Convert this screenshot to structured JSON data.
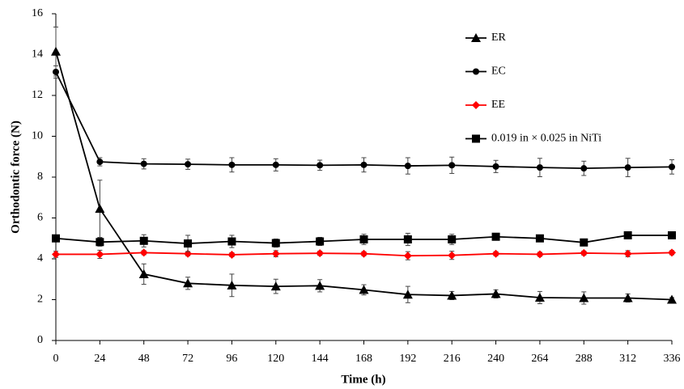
{
  "chart_data": {
    "type": "line",
    "x_label": "Time (h)",
    "y_label": "Orthodontic force (N)",
    "x": [
      0,
      24,
      48,
      72,
      96,
      120,
      144,
      168,
      192,
      216,
      240,
      264,
      288,
      312,
      336
    ],
    "xlim": [
      0,
      336
    ],
    "xticks": [
      0,
      24,
      48,
      72,
      96,
      120,
      144,
      168,
      192,
      216,
      240,
      264,
      288,
      312,
      336
    ],
    "ylim": [
      0,
      16
    ],
    "yticks": [
      0,
      2,
      4,
      6,
      8,
      10,
      12,
      14,
      16
    ],
    "grid": false,
    "legend": "upper right",
    "series": [
      {
        "name": "ER",
        "color": "#000000",
        "marker": "triangle",
        "values": [
          14.15,
          6.45,
          3.25,
          2.8,
          2.7,
          2.65,
          2.68,
          2.48,
          2.25,
          2.2,
          2.28,
          2.1,
          2.08,
          2.08,
          2.0
        ],
        "errors": [
          1.2,
          1.4,
          0.5,
          0.3,
          0.55,
          0.35,
          0.3,
          0.25,
          0.4,
          0.2,
          0.2,
          0.3,
          0.3,
          0.2,
          0.1
        ]
      },
      {
        "name": "EC",
        "color": "#000000",
        "marker": "circle",
        "values": [
          13.15,
          8.75,
          8.65,
          8.63,
          8.6,
          8.6,
          8.58,
          8.6,
          8.55,
          8.58,
          8.52,
          8.47,
          8.43,
          8.47,
          8.5
        ],
        "errors": [
          0.3,
          0.2,
          0.25,
          0.25,
          0.35,
          0.3,
          0.25,
          0.35,
          0.4,
          0.4,
          0.3,
          0.45,
          0.35,
          0.45,
          0.35
        ]
      },
      {
        "name": "EE",
        "color": "#ff0000",
        "marker": "diamond",
        "values": [
          4.22,
          4.22,
          4.3,
          4.25,
          4.2,
          4.25,
          4.27,
          4.25,
          4.15,
          4.17,
          4.25,
          4.22,
          4.28,
          4.25,
          4.3
        ],
        "errors": [
          0.15,
          0.2,
          0.1,
          0.1,
          0.1,
          0.15,
          0.1,
          0.1,
          0.2,
          0.2,
          0.1,
          0.1,
          0.1,
          0.15,
          0.1
        ]
      },
      {
        "name": "0.019 in × 0.025 in NiTi",
        "color": "#000000",
        "marker": "square",
        "values": [
          5.0,
          4.82,
          4.88,
          4.75,
          4.85,
          4.77,
          4.85,
          4.95,
          4.95,
          4.95,
          5.08,
          5.0,
          4.8,
          5.15,
          5.15
        ],
        "errors": [
          0.15,
          0.2,
          0.3,
          0.4,
          0.3,
          0.2,
          0.2,
          0.25,
          0.3,
          0.25,
          0.1,
          0.15,
          0.15,
          0.1,
          0.1
        ]
      }
    ]
  }
}
